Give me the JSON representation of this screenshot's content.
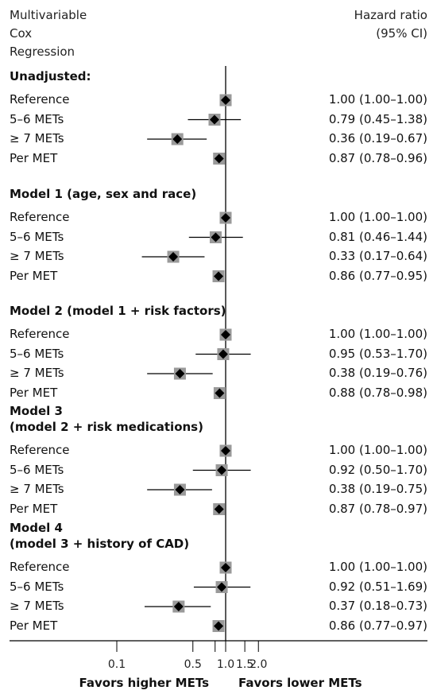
{
  "header": {
    "left_lines": [
      "Multivariable",
      "Cox",
      "Regression"
    ],
    "right_lines": [
      "Hazard ratio",
      "(95% CI)"
    ]
  },
  "chart_data": {
    "type": "forest",
    "xscale": "log",
    "reference_line": 1.0,
    "x_ticks": [
      "0.1",
      "0.5",
      "1.0",
      "1.5",
      "2.0"
    ],
    "x_tick_values": [
      0.1,
      0.5,
      1.0,
      1.5,
      2.0
    ],
    "favors_left": "Favors higher METs",
    "favors_right": "Favors lower METs",
    "groups": [
      {
        "title": [
          "Unadjusted:"
        ],
        "rows": [
          {
            "label": "Reference",
            "hr": 1.0,
            "lo": 1.0,
            "hi": 1.0,
            "text": "1.00 (1.00–1.00)"
          },
          {
            "label": "5–6 METs",
            "hr": 0.79,
            "lo": 0.45,
            "hi": 1.38,
            "text": "0.79 (0.45–1.38)"
          },
          {
            "label": "≥ 7 METs",
            "hr": 0.36,
            "lo": 0.19,
            "hi": 0.67,
            "text": "0.36 (0.19–0.67)"
          },
          {
            "label": "Per MET",
            "hr": 0.87,
            "lo": 0.78,
            "hi": 0.96,
            "text": "0.87 (0.78–0.96)"
          }
        ]
      },
      {
        "title": [
          "Model 1 (age, sex and race)"
        ],
        "rows": [
          {
            "label": "Reference",
            "hr": 1.0,
            "lo": 1.0,
            "hi": 1.0,
            "text": "1.00 (1.00–1.00)"
          },
          {
            "label": "5–6 METs",
            "hr": 0.81,
            "lo": 0.46,
            "hi": 1.44,
            "text": "0.81 (0.46–1.44)"
          },
          {
            "label": "≥ 7 METs",
            "hr": 0.33,
            "lo": 0.17,
            "hi": 0.64,
            "text": "0.33 (0.17–0.64)"
          },
          {
            "label": "Per MET",
            "hr": 0.86,
            "lo": 0.77,
            "hi": 0.95,
            "text": "0.86 (0.77–0.95)"
          }
        ]
      },
      {
        "title": [
          "Model 2 (model 1 + risk factors)"
        ],
        "rows": [
          {
            "label": "Reference",
            "hr": 1.0,
            "lo": 1.0,
            "hi": 1.0,
            "text": "1.00 (1.00–1.00)"
          },
          {
            "label": "5–6 METs",
            "hr": 0.95,
            "lo": 0.53,
            "hi": 1.7,
            "text": "0.95 (0.53–1.70)"
          },
          {
            "label": "≥ 7 METs",
            "hr": 0.38,
            "lo": 0.19,
            "hi": 0.76,
            "text": "0.38 (0.19–0.76)"
          },
          {
            "label": "Per MET",
            "hr": 0.88,
            "lo": 0.78,
            "hi": 0.98,
            "text": "0.88 (0.78–0.98)"
          }
        ]
      },
      {
        "title": [
          "Model 3",
          "(model 2 + risk medications)"
        ],
        "rows": [
          {
            "label": "Reference",
            "hr": 1.0,
            "lo": 1.0,
            "hi": 1.0,
            "text": "1.00 (1.00–1.00)"
          },
          {
            "label": "5–6 METs",
            "hr": 0.92,
            "lo": 0.5,
            "hi": 1.7,
            "text": "0.92 (0.50–1.70)"
          },
          {
            "label": "≥ 7 METs",
            "hr": 0.38,
            "lo": 0.19,
            "hi": 0.75,
            "text": "0.38 (0.19–0.75)"
          },
          {
            "label": "Per MET",
            "hr": 0.87,
            "lo": 0.78,
            "hi": 0.97,
            "text": "0.87 (0.78–0.97)"
          }
        ]
      },
      {
        "title": [
          "Model 4",
          "(model 3 + history of CAD)"
        ],
        "rows": [
          {
            "label": "Reference",
            "hr": 1.0,
            "lo": 1.0,
            "hi": 1.0,
            "text": "1.00 (1.00–1.00)"
          },
          {
            "label": "5–6 METs",
            "hr": 0.92,
            "lo": 0.51,
            "hi": 1.69,
            "text": "0.92 (0.51–1.69)"
          },
          {
            "label": "≥ 7 METs",
            "hr": 0.37,
            "lo": 0.18,
            "hi": 0.73,
            "text": "0.37 (0.18–0.73)"
          },
          {
            "label": "Per MET",
            "hr": 0.86,
            "lo": 0.77,
            "hi": 0.97,
            "text": "0.86 (0.77–0.97)"
          }
        ]
      }
    ]
  },
  "colors": {
    "marker_box": "#9a9a9a",
    "marker_diamond": "#000000",
    "ci_line": "#000000",
    "reference_line": "#000000"
  }
}
